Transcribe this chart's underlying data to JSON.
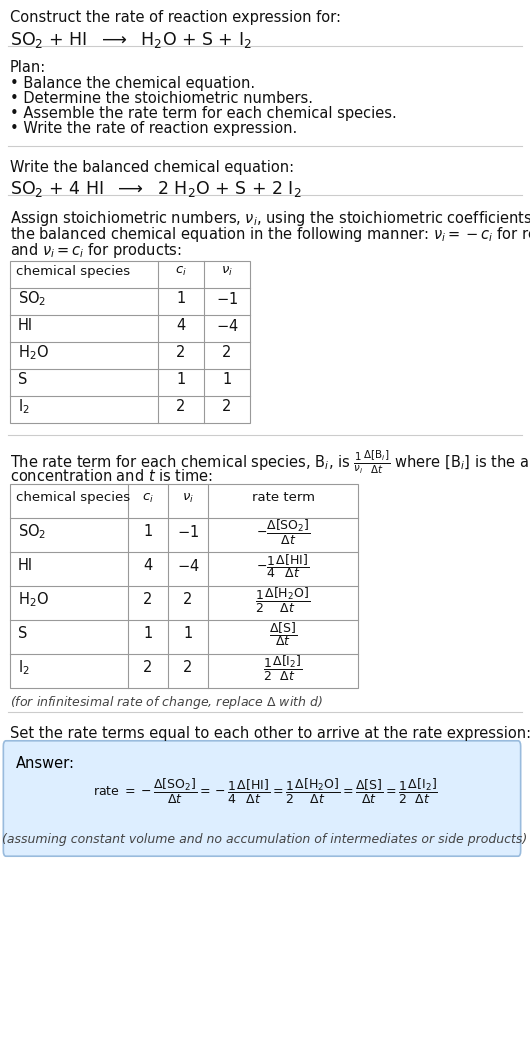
{
  "bg_color": "#ffffff",
  "text_color": "#000000",
  "plan_items": [
    "• Balance the chemical equation.",
    "• Determine the stoichiometric numbers.",
    "• Assemble the rate term for each chemical species.",
    "• Write the rate of reaction expression."
  ],
  "species1": [
    "SO$_2$",
    "HI",
    "H$_2$O",
    "S",
    "I$_2$"
  ],
  "ci1": [
    "1",
    "4",
    "2",
    "1",
    "2"
  ],
  "ni1": [
    "-1",
    "-4",
    "2",
    "1",
    "2"
  ],
  "species2": [
    "SO$_2$",
    "HI",
    "H$_2$O",
    "S",
    "I$_2$"
  ],
  "ci2": [
    "1",
    "4",
    "2",
    "1",
    "2"
  ],
  "ni2": [
    "-1",
    "-4",
    "2",
    "1",
    "2"
  ],
  "answer_bg": "#ddeeff",
  "answer_border": "#99bbdd",
  "footer_note": "(assuming constant volume and no accumulation of intermediates or side products)",
  "line_color": "#bbbbbb",
  "table_border": "#999999"
}
